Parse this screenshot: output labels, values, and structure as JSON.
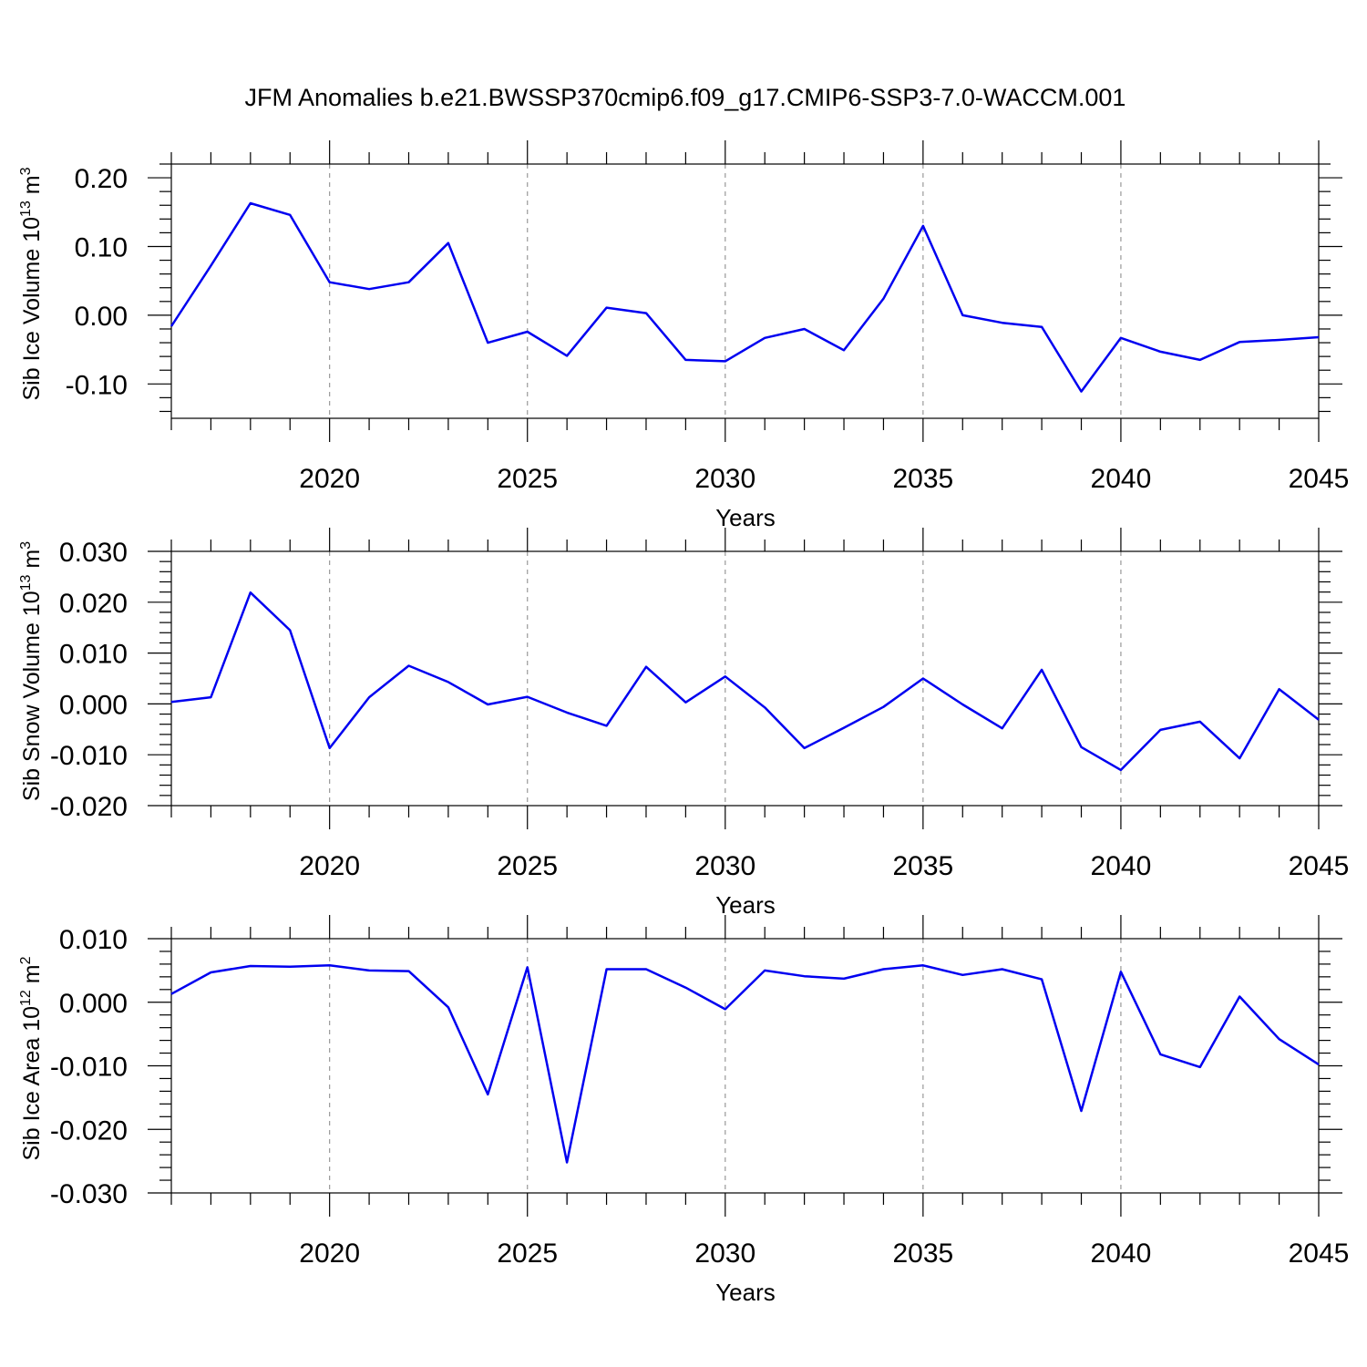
{
  "title": "JFM Anomalies b.e21.BWSSP370cmip6.f09_g17.CMIP6-SSP3-7.0-WACCM.001",
  "colors": {
    "line": "#0000f0",
    "frame": "#000000",
    "grid": "#999999"
  },
  "chart_data": [
    {
      "type": "line",
      "ylabel": "Sib Ice Volume 10",
      "ylabel_exp": "13",
      "ylabel_unit": " m",
      "ylabel_unit_exp": "3",
      "xlabel": "Years",
      "xlim": [
        2016,
        2045
      ],
      "ylim": [
        -0.15,
        0.22
      ],
      "yticks": [
        0.2,
        0.1,
        0.0,
        -0.1
      ],
      "ytick_labels": [
        "0.20",
        "0.10",
        "0.00",
        "-0.10"
      ],
      "xticks": [
        2020,
        2025,
        2030,
        2035,
        2040,
        2045
      ],
      "xtick_labels": [
        "2020",
        "2025",
        "2030",
        "2035",
        "2040",
        "2045"
      ],
      "grid": "vertical dashed at major x ticks",
      "x": [
        2016,
        2017,
        2018,
        2019,
        2020,
        2021,
        2022,
        2023,
        2024,
        2025,
        2026,
        2027,
        2028,
        2029,
        2030,
        2031,
        2032,
        2033,
        2034,
        2035,
        2036,
        2037,
        2038,
        2039,
        2040,
        2041,
        2042,
        2043,
        2044,
        2045
      ],
      "values": [
        -0.016,
        0.072,
        0.163,
        0.146,
        0.048,
        0.038,
        0.048,
        0.105,
        -0.04,
        -0.024,
        -0.059,
        0.011,
        0.003,
        -0.065,
        -0.067,
        -0.033,
        -0.02,
        -0.051,
        0.024,
        0.13,
        0.0,
        -0.011,
        -0.017,
        -0.111,
        -0.033,
        -0.053,
        -0.065,
        -0.039,
        -0.036,
        -0.032
      ]
    },
    {
      "type": "line",
      "ylabel": "Sib Snow Volume 10",
      "ylabel_exp": "13",
      "ylabel_unit": " m",
      "ylabel_unit_exp": "3",
      "xlabel": "Years",
      "xlim": [
        2016,
        2045
      ],
      "ylim": [
        -0.02,
        0.03
      ],
      "yticks": [
        0.03,
        0.02,
        0.01,
        0.0,
        -0.01,
        -0.02
      ],
      "ytick_labels": [
        "0.030",
        "0.020",
        "0.010",
        "0.000",
        "-0.010",
        "-0.020"
      ],
      "xticks": [
        2020,
        2025,
        2030,
        2035,
        2040,
        2045
      ],
      "xtick_labels": [
        "2020",
        "2025",
        "2030",
        "2035",
        "2040",
        "2045"
      ],
      "grid": "vertical dashed at major x ticks",
      "x": [
        2016,
        2017,
        2018,
        2019,
        2020,
        2021,
        2022,
        2023,
        2024,
        2025,
        2026,
        2027,
        2028,
        2029,
        2030,
        2031,
        2032,
        2033,
        2034,
        2035,
        2036,
        2037,
        2038,
        2039,
        2040,
        2041,
        2042,
        2043,
        2044,
        2045
      ],
      "values": [
        0.0004,
        0.0013,
        0.0219,
        0.0145,
        -0.0087,
        0.0013,
        0.0075,
        0.0043,
        -0.0001,
        0.0014,
        -0.0017,
        -0.0043,
        0.0073,
        0.0003,
        0.0054,
        -0.0007,
        -0.0087,
        -0.0047,
        -0.0006,
        0.005,
        -0.0001,
        -0.0048,
        0.0067,
        -0.0085,
        -0.013,
        -0.0051,
        -0.0035,
        -0.0107,
        0.0029,
        -0.0031
      ]
    },
    {
      "type": "line",
      "ylabel": "Sib Ice Area 10",
      "ylabel_exp": "12",
      "ylabel_unit": " m",
      "ylabel_unit_exp": "2",
      "xlabel": "Years",
      "xlim": [
        2016,
        2045
      ],
      "ylim": [
        -0.03,
        0.01
      ],
      "yticks": [
        0.01,
        0.0,
        -0.01,
        -0.02,
        -0.03
      ],
      "ytick_labels": [
        "0.010",
        "0.000",
        "-0.010",
        "-0.020",
        "-0.030"
      ],
      "xticks": [
        2020,
        2025,
        2030,
        2035,
        2040,
        2045
      ],
      "xtick_labels": [
        "2020",
        "2025",
        "2030",
        "2035",
        "2040",
        "2045"
      ],
      "grid": "vertical dashed at major x ticks",
      "x": [
        2016,
        2017,
        2018,
        2019,
        2020,
        2021,
        2022,
        2023,
        2024,
        2025,
        2026,
        2027,
        2028,
        2029,
        2030,
        2031,
        2032,
        2033,
        2034,
        2035,
        2036,
        2037,
        2038,
        2039,
        2040,
        2041,
        2042,
        2043,
        2044,
        2045
      ],
      "values": [
        0.0013,
        0.0047,
        0.0057,
        0.0056,
        0.0058,
        0.005,
        0.0049,
        -0.0008,
        -0.0145,
        0.0055,
        -0.0252,
        0.0052,
        0.0052,
        0.0023,
        -0.0011,
        0.005,
        0.0041,
        0.0037,
        0.0052,
        0.0058,
        0.0043,
        0.0052,
        0.0036,
        -0.0171,
        0.0048,
        -0.0082,
        -0.0102,
        0.0009,
        -0.0058,
        -0.0098
      ]
    }
  ]
}
